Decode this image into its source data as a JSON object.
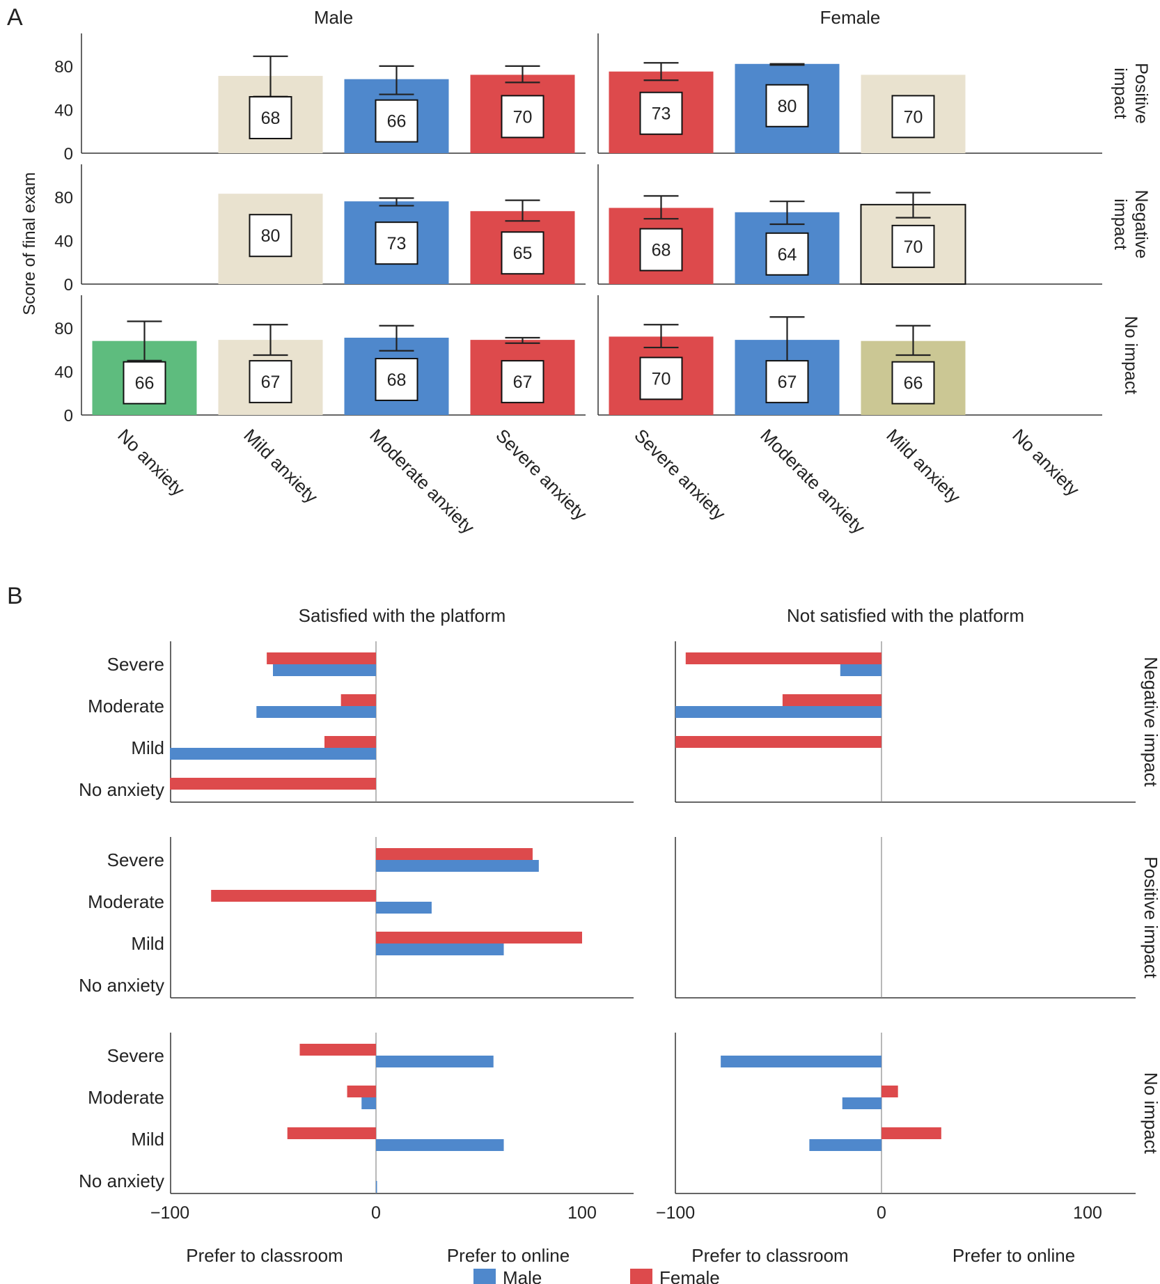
{
  "colors": {
    "male": "#4f88cc",
    "female": "#dd4a4c",
    "mild": "#e9e2cf",
    "mild_dark": "#cbc794",
    "none": "#5ebc7e",
    "axis": "#333333",
    "zero_line": "#888888",
    "error_bar": "#222222"
  },
  "chart_data": [
    {
      "panel": "A",
      "type": "bar",
      "ylabel": "Score of final exam",
      "ylim": [
        0,
        110
      ],
      "yticks": [
        0,
        40,
        80
      ],
      "error_bars": true,
      "value_labels": true,
      "columns": [
        {
          "title": "Male",
          "categories": [
            "No anxiety",
            "Mild anxiety",
            "Moderate anxiety",
            "Severe anxiety"
          ]
        },
        {
          "title": "Female",
          "categories": [
            "Severe anxiety",
            "Moderate anxiety",
            "Mild anxiety",
            "No anxiety"
          ]
        }
      ],
      "rows": [
        {
          "label": [
            "Positive",
            "impact"
          ],
          "cells": [
            [
              null,
              {
                "value": 68,
                "bar": 71,
                "low": 52,
                "high": 89,
                "color": "mild"
              },
              {
                "value": 66,
                "bar": 68,
                "low": 54,
                "high": 80,
                "color": "male"
              },
              {
                "value": 70,
                "bar": 72,
                "low": 65,
                "high": 80,
                "color": "female"
              }
            ],
            [
              {
                "value": 73,
                "bar": 75,
                "low": 67,
                "high": 83,
                "color": "female"
              },
              {
                "value": 80,
                "bar": 82,
                "low": 81,
                "high": 82,
                "color": "male"
              },
              {
                "value": 70,
                "bar": 72,
                "low": null,
                "high": null,
                "color": "mild"
              },
              null
            ]
          ]
        },
        {
          "label": [
            "Negative",
            "impact"
          ],
          "cells": [
            [
              null,
              {
                "value": 80,
                "bar": 83,
                "low": null,
                "high": null,
                "color": "mild"
              },
              {
                "value": 73,
                "bar": 76,
                "low": 72,
                "high": 79,
                "color": "male"
              },
              {
                "value": 65,
                "bar": 67,
                "low": 58,
                "high": 77,
                "color": "female"
              }
            ],
            [
              {
                "value": 68,
                "bar": 70,
                "low": 60,
                "high": 81,
                "color": "female"
              },
              {
                "value": 64,
                "bar": 66,
                "low": 55,
                "high": 76,
                "color": "male"
              },
              {
                "value": 70,
                "bar": 73,
                "low": 61,
                "high": 84,
                "color": "mild",
                "outline": true
              },
              null
            ]
          ]
        },
        {
          "label": [
            "No impact"
          ],
          "cells": [
            [
              {
                "value": 66,
                "bar": 68,
                "low": 50,
                "high": 86,
                "color": "none"
              },
              {
                "value": 67,
                "bar": 69,
                "low": 55,
                "high": 83,
                "color": "mild"
              },
              {
                "value": 68,
                "bar": 71,
                "low": 59,
                "high": 82,
                "color": "male"
              },
              {
                "value": 67,
                "bar": 69,
                "low": 66,
                "high": 71,
                "color": "female"
              }
            ],
            [
              {
                "value": 70,
                "bar": 72,
                "low": 62,
                "high": 83,
                "color": "female"
              },
              {
                "value": 67,
                "bar": 69,
                "low": 47,
                "high": 90,
                "color": "male"
              },
              {
                "value": 66,
                "bar": 68,
                "low": 55,
                "high": 82,
                "color": "mild_dark"
              },
              null
            ]
          ]
        }
      ]
    },
    {
      "panel": "B",
      "type": "bar",
      "orientation": "horizontal",
      "xlim": [
        -100,
        120
      ],
      "xticks": [
        -100,
        0,
        100
      ],
      "xtick_labels": [
        "−100",
        "0",
        "100"
      ],
      "categories": [
        "Severe",
        "Moderate",
        "Mild",
        "No anxiety"
      ],
      "columns": [
        "Satisfied with the platform",
        "Not satisfied with the platform"
      ],
      "axis_notes": [
        "Prefer to classroom",
        "Prefer to online"
      ],
      "rows": [
        {
          "label": "Negative impact",
          "cells": [
            {
              "Female": [
                -53,
                -17,
                -25,
                -100
              ],
              "Male": [
                -50,
                -58,
                -100,
                null
              ]
            },
            {
              "Female": [
                -95,
                -48,
                -100,
                null
              ],
              "Male": [
                -20,
                -100,
                null,
                null
              ]
            }
          ]
        },
        {
          "label": "Positive impact",
          "cells": [
            {
              "Female": [
                76,
                -80,
                100,
                null
              ],
              "Male": [
                79,
                27,
                62,
                null
              ]
            },
            {
              "Female": [
                null,
                null,
                null,
                null
              ],
              "Male": [
                null,
                null,
                null,
                null
              ]
            }
          ]
        },
        {
          "label": "No impact",
          "cells": [
            {
              "Female": [
                -37,
                -14,
                -43,
                null
              ],
              "Male": [
                57,
                -7,
                62,
                0
              ]
            },
            {
              "Female": [
                null,
                8,
                29,
                null
              ],
              "Male": [
                -78,
                -19,
                -35,
                null
              ]
            }
          ]
        }
      ],
      "legend": [
        {
          "name": "Male",
          "color": "male"
        },
        {
          "name": "Female",
          "color": "female"
        }
      ]
    }
  ]
}
